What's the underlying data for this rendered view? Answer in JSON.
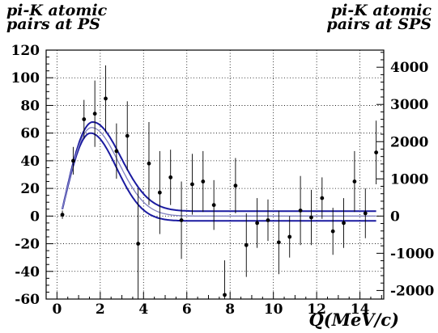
{
  "chart_data": {
    "type": "scatter",
    "title_left": "pi-K atomic\npairs at PS",
    "title_right": "pi-K atomic\npairs at SPS",
    "xlabel": "Q(MeV/c)",
    "xlim": [
      -0.5,
      15.1
    ],
    "ylim": [
      -60,
      120
    ],
    "ylim_right": [
      -2230,
      4460
    ],
    "x_ticks": [
      0,
      2,
      4,
      6,
      8,
      10,
      12,
      14
    ],
    "y_ticks": [
      -60,
      -40,
      -20,
      0,
      20,
      40,
      60,
      80,
      100,
      120
    ],
    "y_right_ticks": [
      -2000,
      -1000,
      0,
      1000,
      2000,
      3000,
      4000
    ],
    "grid": true,
    "points": [
      {
        "x": 0.25,
        "y": 1,
        "err": 3
      },
      {
        "x": 0.75,
        "y": 40,
        "err": 10
      },
      {
        "x": 1.25,
        "y": 70,
        "err": 14
      },
      {
        "x": 1.75,
        "y": 74,
        "err": 24
      },
      {
        "x": 2.25,
        "y": 85,
        "err": 24
      },
      {
        "x": 2.75,
        "y": 47,
        "err": 20
      },
      {
        "x": 3.25,
        "y": 58,
        "err": 25
      },
      {
        "x": 3.75,
        "y": -20,
        "err": 40
      },
      {
        "x": 4.25,
        "y": 38,
        "err": 30
      },
      {
        "x": 4.75,
        "y": 17,
        "err": 30
      },
      {
        "x": 5.25,
        "y": 28,
        "err": 20
      },
      {
        "x": 5.75,
        "y": -3,
        "err": 28
      },
      {
        "x": 6.25,
        "y": 23,
        "err": 22
      },
      {
        "x": 6.75,
        "y": 25,
        "err": 22
      },
      {
        "x": 7.25,
        "y": 8,
        "err": 18
      },
      {
        "x": 7.75,
        "y": -57,
        "err": 25
      },
      {
        "x": 8.25,
        "y": 22,
        "err": 20
      },
      {
        "x": 8.75,
        "y": -21,
        "err": 23
      },
      {
        "x": 9.25,
        "y": -5,
        "err": 18
      },
      {
        "x": 9.75,
        "y": -3,
        "err": 15
      },
      {
        "x": 10.25,
        "y": -19,
        "err": 23
      },
      {
        "x": 10.75,
        "y": -15,
        "err": 15
      },
      {
        "x": 11.25,
        "y": 4,
        "err": 25
      },
      {
        "x": 11.75,
        "y": -1,
        "err": 20
      },
      {
        "x": 12.25,
        "y": 13,
        "err": 15
      },
      {
        "x": 12.75,
        "y": -11,
        "err": 17
      },
      {
        "x": 13.25,
        "y": -5,
        "err": 18
      },
      {
        "x": 13.75,
        "y": 25,
        "err": 22
      },
      {
        "x": 14.25,
        "y": 2,
        "err": 18
      },
      {
        "x": 14.75,
        "y": 46,
        "err": 23
      }
    ],
    "fit_curves": [
      {
        "color": "#1a1aa0",
        "peak": 68,
        "x0": 0.25,
        "xpeak": 1.65,
        "sigma": 1.3,
        "tail": 3.5,
        "kind": "upper"
      },
      {
        "color": "#1a1aa0",
        "peak": 60,
        "x0": 0.25,
        "xpeak": 1.55,
        "sigma": 1.2,
        "tail": -3.5,
        "kind": "lower"
      },
      {
        "color": "#8080c0",
        "peak": 64,
        "x0": 0.25,
        "xpeak": 1.6,
        "sigma": 1.25,
        "tail": 0,
        "kind": "center"
      }
    ]
  }
}
